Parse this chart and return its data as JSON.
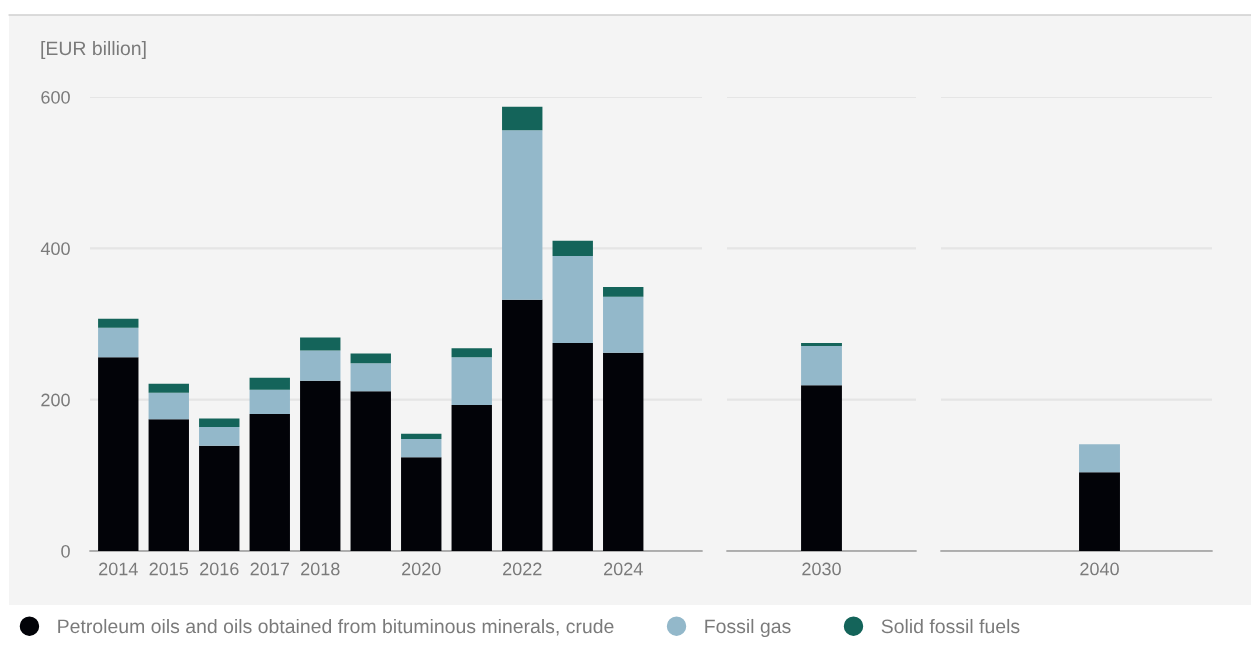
{
  "chart_data": [
    {
      "type": "bar",
      "stacked": true,
      "ylabel": "[EUR billion]",
      "categories": [
        "2014",
        "2015",
        "2016",
        "2017",
        "2018",
        null,
        "2020",
        null,
        "2022",
        null,
        "2024",
        null
      ],
      "series": [
        {
          "name": "Petroleum oils and oils obtained from bituminous minerals, crude",
          "color": "#020308",
          "values": [
            256,
            174,
            139,
            181,
            225,
            211,
            124,
            193,
            332,
            275,
            262,
            null
          ]
        },
        {
          "name": "Fossil gas",
          "color": "#93b8ca",
          "values": [
            39,
            35,
            25,
            32,
            40,
            37,
            24,
            63,
            224,
            115,
            74,
            null
          ]
        },
        {
          "name": "Solid fossil fuels",
          "color": "#14645a",
          "values": [
            12,
            12,
            11,
            16,
            17,
            13,
            7,
            12,
            31,
            20,
            13,
            null
          ]
        }
      ],
      "ylim": [
        0,
        600
      ],
      "yticks": [
        0,
        200,
        400,
        600
      ],
      "grid": "y",
      "legend": "bottom"
    },
    {
      "type": "bar",
      "stacked": true,
      "categories": [
        "2030"
      ],
      "series": [
        {
          "color": "#020308",
          "values": [
            219
          ]
        },
        {
          "color": "#93b8ca",
          "values": [
            52
          ]
        },
        {
          "color": "#14645a",
          "values": [
            4
          ]
        }
      ],
      "ylim": [
        0,
        600
      ],
      "yticks": [
        0,
        200,
        400,
        600
      ],
      "grid": "y",
      "tick_labels": "x"
    },
    {
      "type": "bar",
      "stacked": true,
      "categories": [
        "2040"
      ],
      "series": [
        {
          "color": "#020308",
          "values": [
            104
          ]
        },
        {
          "color": "#93b8ca",
          "values": [
            37
          ]
        }
      ],
      "ylim": [
        0,
        600
      ],
      "yticks": [
        0,
        200,
        400,
        600
      ],
      "grid": "y",
      "tick_labels": "x"
    }
  ]
}
